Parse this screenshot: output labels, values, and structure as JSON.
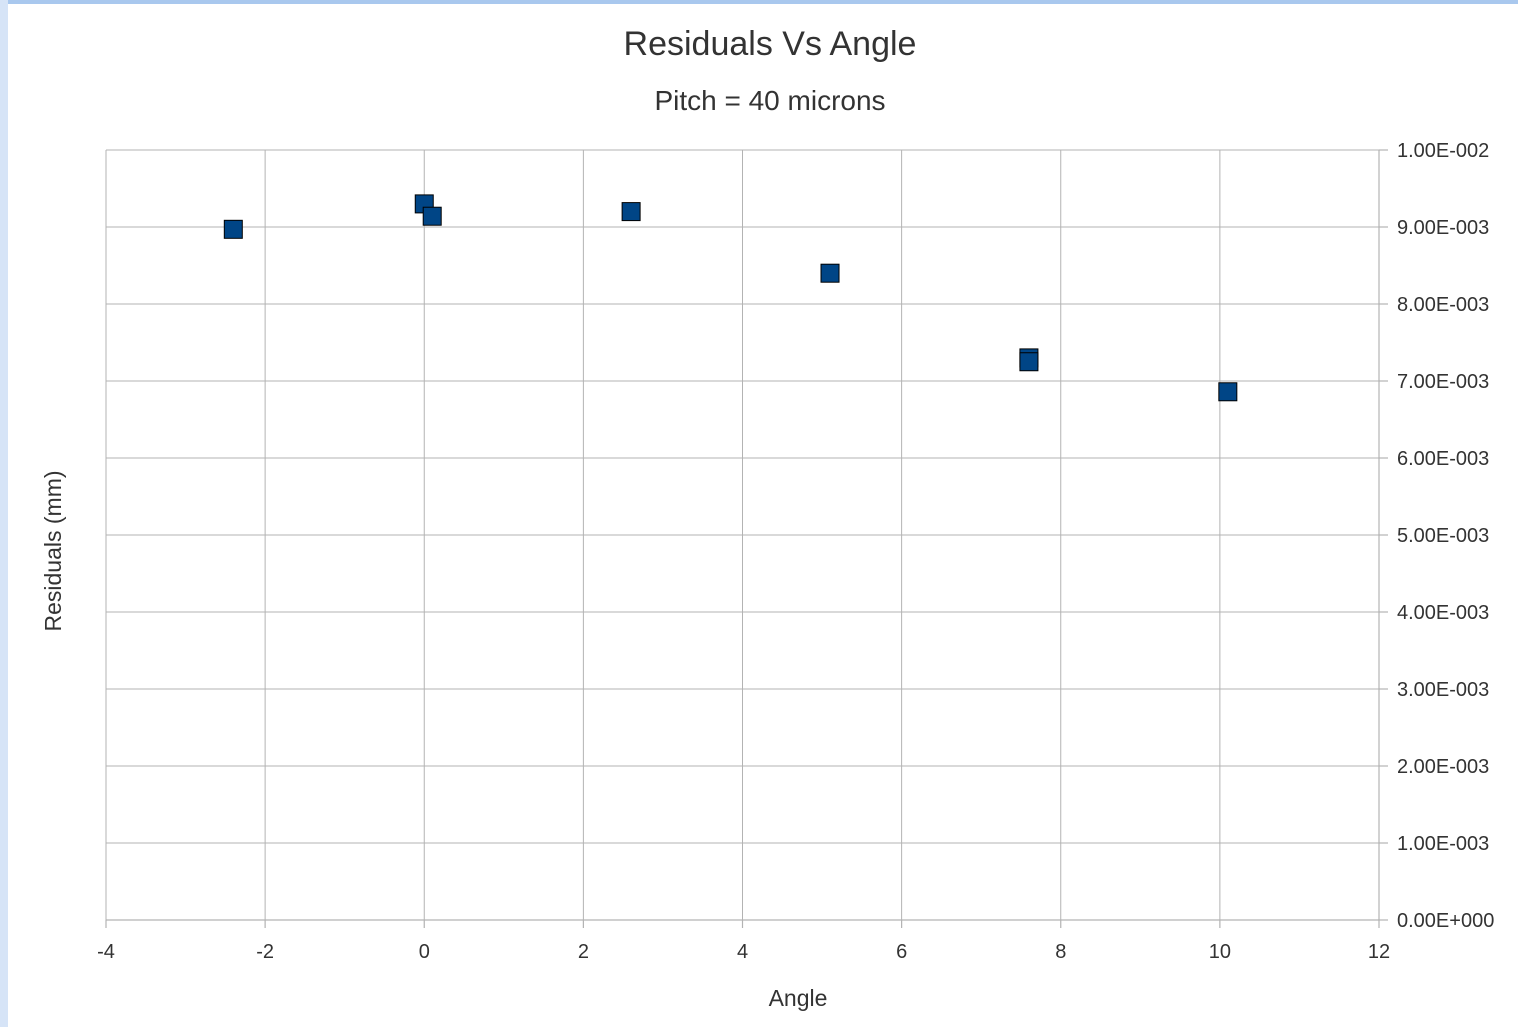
{
  "frame": {
    "top_bar_color": "#a9c8ee",
    "left_bar_color": "#d6e4f7"
  },
  "chart_data": {
    "type": "scatter",
    "title": "Residuals Vs Angle",
    "subtitle": "Pitch = 40 microns",
    "xlabel": "Angle",
    "ylabel": "Residuals (mm)",
    "xlim": [
      -4,
      12
    ],
    "ylim": [
      0,
      0.01
    ],
    "x_ticks": [
      -4,
      -2,
      0,
      2,
      4,
      6,
      8,
      10,
      12
    ],
    "x_tick_labels": [
      "-4",
      "-2",
      "0",
      "2",
      "4",
      "6",
      "8",
      "10",
      "12"
    ],
    "y_ticks": [
      0,
      0.001,
      0.002,
      0.003,
      0.004,
      0.005,
      0.006,
      0.007,
      0.008,
      0.009,
      0.01
    ],
    "y_tick_labels": [
      "0.00E+000",
      "1.00E-003",
      "2.00E-003",
      "3.00E-003",
      "4.00E-003",
      "5.00E-003",
      "6.00E-003",
      "7.00E-003",
      "8.00E-003",
      "9.00E-003",
      "1.00E-002"
    ],
    "y_axis_side": "right",
    "grid": true,
    "marker": "square",
    "marker_color": "#004586",
    "series": [
      {
        "points": [
          {
            "x": -2.4,
            "y": 0.00897
          },
          {
            "x": 0.0,
            "y": 0.0093
          },
          {
            "x": 0.1,
            "y": 0.00914
          },
          {
            "x": 2.6,
            "y": 0.0092
          },
          {
            "x": 5.1,
            "y": 0.0084
          },
          {
            "x": 7.6,
            "y": 0.0073
          },
          {
            "x": 7.6,
            "y": 0.00725
          },
          {
            "x": 10.1,
            "y": 0.00686
          }
        ]
      }
    ]
  }
}
